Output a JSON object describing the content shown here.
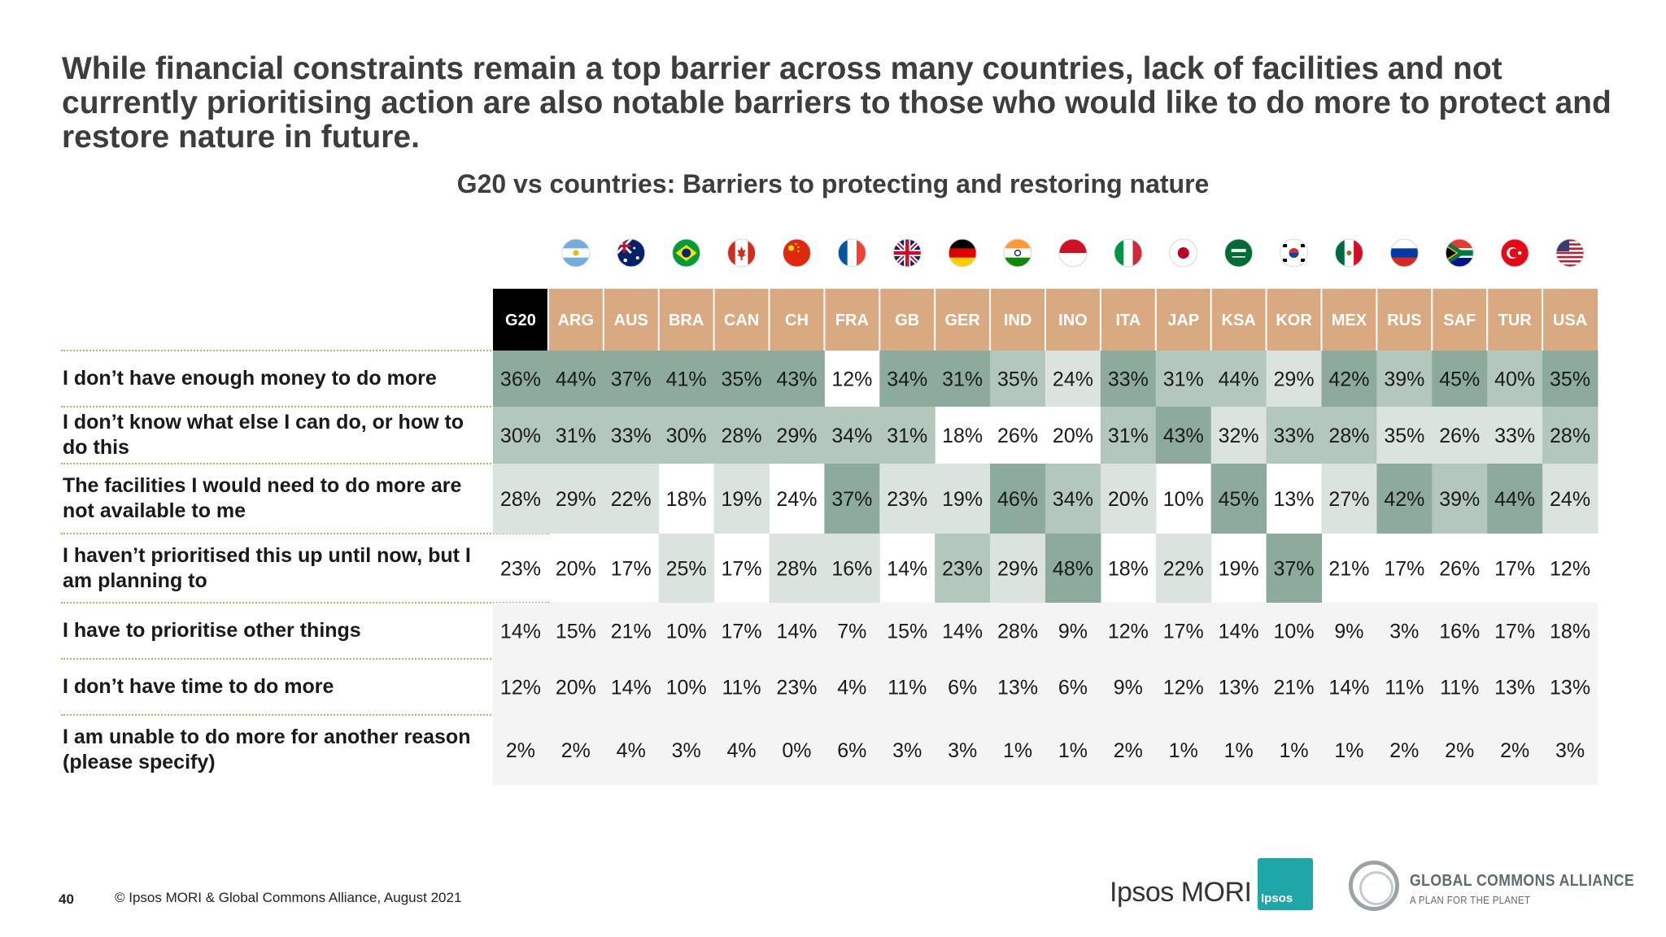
{
  "headline": "While financial constraints remain a top barrier across many countries, lack of facilities and not currently prioritising action are also notable barriers to those who would like to do more to protect and restore nature in future.",
  "chart_data": {
    "type": "table",
    "title": "G20 vs countries: Barriers to protecting and restoring nature",
    "columns": [
      "G20",
      "ARG",
      "AUS",
      "BRA",
      "CAN",
      "CH",
      "FRA",
      "GB",
      "GER",
      "IND",
      "INO",
      "ITA",
      "JAP",
      "KSA",
      "KOR",
      "MEX",
      "RUS",
      "SAF",
      "TUR",
      "USA"
    ],
    "flags": [
      "argentina-flag-icon",
      "australia-flag-icon",
      "brazil-flag-icon",
      "canada-flag-icon",
      "china-flag-icon",
      "france-flag-icon",
      "uk-flag-icon",
      "germany-flag-icon",
      "india-flag-icon",
      "indonesia-flag-icon",
      "italy-flag-icon",
      "japan-flag-icon",
      "saudi-arabia-flag-icon",
      "south-korea-flag-icon",
      "mexico-flag-icon",
      "russia-flag-icon",
      "south-africa-flag-icon",
      "turkey-flag-icon",
      "usa-flag-icon"
    ],
    "rows": [
      {
        "label": "I don’t have enough money to do more",
        "values": [
          36,
          44,
          37,
          41,
          35,
          43,
          12,
          34,
          31,
          35,
          24,
          33,
          31,
          44,
          29,
          42,
          39,
          45,
          40,
          35
        ]
      },
      {
        "label": "I don’t know what else I can do, or how to do this",
        "values": [
          30,
          31,
          33,
          30,
          28,
          29,
          34,
          31,
          18,
          26,
          20,
          31,
          43,
          32,
          33,
          28,
          35,
          26,
          33,
          28
        ]
      },
      {
        "label": "The facilities I would need to do more are not available to me",
        "values": [
          28,
          29,
          22,
          18,
          19,
          24,
          37,
          23,
          19,
          46,
          34,
          20,
          10,
          45,
          13,
          27,
          42,
          39,
          44,
          24
        ]
      },
      {
        "label": "I haven’t prioritised this up until now, but I am planning to",
        "values": [
          23,
          20,
          17,
          25,
          17,
          28,
          16,
          14,
          23,
          29,
          48,
          18,
          22,
          19,
          37,
          21,
          17,
          26,
          17,
          12
        ]
      },
      {
        "label": "I have to prioritise other things",
        "values": [
          14,
          15,
          21,
          10,
          17,
          14,
          7,
          15,
          14,
          28,
          9,
          12,
          17,
          14,
          10,
          9,
          3,
          16,
          17,
          18
        ]
      },
      {
        "label": "I don’t have time to do more",
        "values": [
          12,
          20,
          14,
          10,
          11,
          23,
          4,
          11,
          6,
          13,
          6,
          9,
          12,
          13,
          21,
          14,
          11,
          11,
          13,
          13
        ]
      },
      {
        "label": "I am unable to do more for another reason (please specify)",
        "values": [
          2,
          2,
          4,
          3,
          4,
          0,
          6,
          3,
          3,
          1,
          1,
          2,
          1,
          1,
          1,
          1,
          2,
          2,
          2,
          3
        ]
      }
    ],
    "value_suffix": "%",
    "colors": {
      "header_g20": "#000000",
      "header_country": "#d9a982",
      "rank_1": "#8cab9c",
      "rank_2": "#b3c7bd",
      "rank_3": "#dae3de",
      "other_rows_bg": "#f4f4f4"
    }
  },
  "footer": {
    "page_number": "40",
    "copyright": "© Ipsos MORI & Global Commons Alliance, August 2021"
  },
  "logos": {
    "ipsos_mori": "Ipsos MORI",
    "ipsos_box": "Ipsos",
    "gca_name": "GLOBAL COMMONS ALLIANCE",
    "gca_tagline": "A PLAN FOR THE PLANET"
  }
}
